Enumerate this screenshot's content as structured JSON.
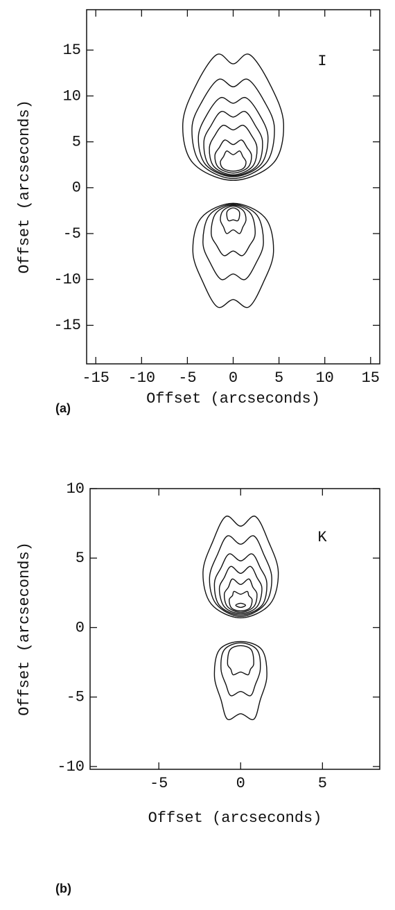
{
  "chart_data": [
    {
      "type": "contour",
      "panel_label": "(a)",
      "annotation": "I",
      "xlabel": "Offset (arcseconds)",
      "ylabel": "Offset (arcseconds)",
      "xlim": [
        -16,
        16
      ],
      "ylim": [
        -19.2,
        19.4
      ],
      "xticks": [
        -15,
        -10,
        -5,
        0,
        5,
        10,
        15
      ],
      "yticks": [
        -15,
        -10,
        -5,
        0,
        5,
        10,
        15
      ],
      "contours": [
        {
          "x": [
            0,
            4.4,
            5.5,
            4.1,
            1.8,
            0,
            -1.8,
            -4.1,
            -5.5,
            -4.4
          ],
          "y": [
            0.8,
            2.7,
            7,
            11.1,
            14.5,
            13.5,
            14.5,
            11.1,
            7,
            2.7
          ]
        },
        {
          "x": [
            0,
            3.6,
            4.5,
            3.4,
            1.6,
            0,
            -1.6,
            -3.4,
            -4.5,
            -3.6
          ],
          "y": [
            1,
            2.7,
            6.5,
            9.4,
            11.8,
            11,
            11.8,
            9.4,
            6.5,
            2.7
          ]
        },
        {
          "x": [
            0,
            3,
            3.8,
            2.9,
            1.4,
            0,
            -1.4,
            -2.9,
            -3.8,
            -3
          ],
          "y": [
            1.2,
            2.5,
            5.5,
            7.9,
            9.8,
            9.2,
            9.8,
            7.9,
            5.5,
            2.5
          ]
        },
        {
          "x": [
            0,
            2.6,
            3.2,
            2.4,
            1.3,
            0,
            -1.3,
            -2.4,
            -3.2,
            -2.6
          ],
          "y": [
            1.3,
            2.4,
            5,
            6.8,
            8.3,
            7.7,
            8.3,
            6.8,
            5,
            2.4
          ]
        },
        {
          "x": [
            0,
            2.1,
            2.6,
            2,
            1.1,
            0,
            -1.1,
            -2,
            -2.6,
            -2.1
          ],
          "y": [
            1.4,
            2.3,
            4.3,
            5.7,
            6.8,
            6.3,
            6.8,
            5.7,
            4.3,
            2.3
          ]
        },
        {
          "x": [
            0,
            1.6,
            2,
            1.5,
            0.9,
            0,
            -0.9,
            -1.5,
            -2,
            -1.6
          ],
          "y": [
            1.6,
            2.2,
            3.5,
            4.4,
            5.2,
            4.7,
            5.2,
            4.4,
            3.5,
            2.2
          ]
        },
        {
          "x": [
            0,
            1.1,
            1.4,
            1.05,
            0.7,
            0,
            -0.7,
            -1.05,
            -1.4,
            -1.1
          ],
          "y": [
            1.8,
            2.1,
            2.8,
            3.4,
            4,
            3.6,
            4,
            3.4,
            2.8,
            2.1
          ]
        },
        {
          "x": [
            0,
            3.5,
            4.4,
            3.3,
            1.7,
            0,
            -1.7,
            -3.3,
            -4.4,
            -3.5
          ],
          "y": [
            -1.7,
            -3.3,
            -7,
            -10.3,
            -13,
            -12.2,
            -13,
            -10.3,
            -7,
            -3.3
          ]
        },
        {
          "x": [
            0,
            2.6,
            3.3,
            2.5,
            1.3,
            0,
            -1.3,
            -2.5,
            -3.3,
            -2.6
          ],
          "y": [
            -1.8,
            -3,
            -6,
            -8.2,
            -10,
            -9.4,
            -10,
            -8.2,
            -6,
            -3
          ]
        },
        {
          "x": [
            0,
            1.9,
            2.4,
            1.8,
            1,
            0,
            -1,
            -1.8,
            -2.4,
            -1.9
          ],
          "y": [
            -1.9,
            -2.8,
            -5,
            -6.3,
            -7.4,
            -6.9,
            -7.4,
            -6.3,
            -5,
            -2.8
          ]
        },
        {
          "x": [
            0,
            1.1,
            1.4,
            1.05,
            0.7,
            0,
            -0.7,
            -1.05,
            -1.4,
            -1.1
          ],
          "y": [
            -2,
            -2.5,
            -3.5,
            -4.3,
            -5,
            -4.6,
            -5,
            -4.3,
            -3.5,
            -2.5
          ]
        },
        {
          "x": [
            0,
            0.6,
            0.7,
            0.5,
            0,
            -0.5,
            -0.7,
            -0.6
          ],
          "y": [
            -2.2,
            -2.5,
            -3,
            -3.6,
            -3.5,
            -3.6,
            -3,
            -2.5
          ]
        }
      ]
    },
    {
      "type": "contour",
      "panel_label": "(b)",
      "annotation": "K",
      "xlabel": "Offset (arcseconds)",
      "ylabel": "Offset (arcseconds)",
      "xlim": [
        -9.2,
        8.5
      ],
      "ylim": [
        -10.2,
        10
      ],
      "xticks": [
        -5,
        0,
        5
      ],
      "yticks": [
        -10,
        -5,
        0,
        5,
        10
      ],
      "contours": [
        {
          "x": [
            0,
            1.8,
            2.3,
            1.7,
            0.9,
            0,
            -0.9,
            -1.7,
            -2.3,
            -1.8
          ],
          "y": [
            0.7,
            1.7,
            4,
            6.2,
            8,
            7.3,
            8,
            6.2,
            4,
            1.7
          ]
        },
        {
          "x": [
            0,
            1.5,
            1.9,
            1.4,
            0.8,
            0,
            -0.8,
            -1.4,
            -1.9,
            -1.5
          ],
          "y": [
            0.8,
            1.7,
            3.6,
            5.3,
            6.6,
            6,
            6.6,
            5.3,
            3.6,
            1.7
          ]
        },
        {
          "x": [
            0,
            1.3,
            1.6,
            1.2,
            0.7,
            0,
            -0.7,
            -1.2,
            -1.6,
            -1.3
          ],
          "y": [
            0.9,
            1.6,
            3.2,
            4.3,
            5.3,
            4.8,
            5.3,
            4.3,
            3.2,
            1.6
          ]
        },
        {
          "x": [
            0,
            1,
            1.3,
            1,
            0.6,
            0,
            -0.6,
            -1,
            -1.3,
            -1
          ],
          "y": [
            1,
            1.5,
            2.8,
            3.6,
            4.4,
            3.9,
            4.4,
            3.6,
            2.8,
            1.5
          ]
        },
        {
          "x": [
            0,
            0.8,
            1,
            0.75,
            0.5,
            0,
            -0.5,
            -0.75,
            -1,
            -0.8
          ],
          "y": [
            1.1,
            1.5,
            2.4,
            2.9,
            3.5,
            3.1,
            3.5,
            2.9,
            2.4,
            1.5
          ]
        },
        {
          "x": [
            0,
            0.55,
            0.7,
            0.5,
            0.4,
            0,
            -0.4,
            -0.5,
            -0.7,
            -0.55
          ],
          "y": [
            1.2,
            1.4,
            2,
            2.3,
            2.6,
            2.4,
            2.6,
            2.3,
            2,
            1.4
          ]
        },
        {
          "x": [
            0,
            0.3,
            0,
            -0.3
          ],
          "y": [
            1.45,
            1.6,
            1.75,
            1.6
          ]
        },
        {
          "x": [
            0,
            1.3,
            1.6,
            1.2,
            0.8,
            0,
            -0.8,
            -1.2,
            -1.6,
            -1.3
          ],
          "y": [
            -1,
            -1.6,
            -3.5,
            -5.2,
            -6.6,
            -6.2,
            -6.6,
            -5.2,
            -3.5,
            -1.6
          ]
        },
        {
          "x": [
            0,
            1,
            1.2,
            0.9,
            0.6,
            0,
            -0.6,
            -0.9,
            -1.2,
            -1
          ],
          "y": [
            -1.1,
            -1.6,
            -3,
            -4.1,
            -4.9,
            -4.6,
            -4.9,
            -4.1,
            -3,
            -1.6
          ]
        },
        {
          "x": [
            0,
            0.65,
            0.8,
            0.6,
            0.45,
            0,
            -0.45,
            -0.6,
            -0.8,
            -0.65
          ],
          "y": [
            -1.3,
            -1.6,
            -2.6,
            -3,
            -3.4,
            -3.2,
            -3.4,
            -3,
            -2.6,
            -1.6
          ]
        }
      ]
    }
  ]
}
